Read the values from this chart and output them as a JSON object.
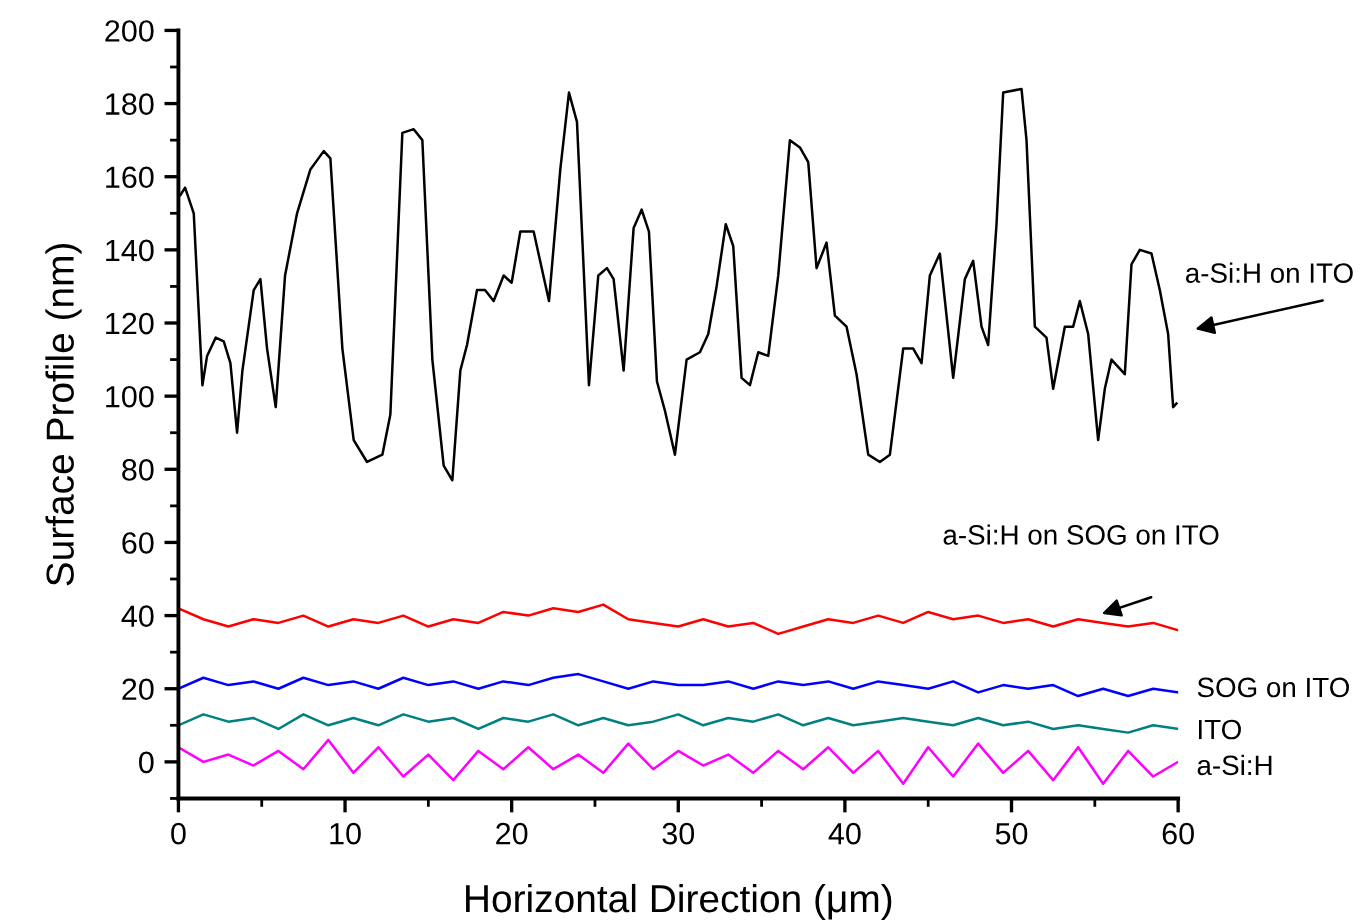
{
  "chart_data": {
    "type": "line",
    "xlabel": "Horizontal Direction (μm)",
    "ylabel": "Surface Profile (nm)",
    "xlim": [
      0,
      60
    ],
    "xticks": [
      0,
      10,
      20,
      30,
      40,
      50,
      60
    ],
    "ylim": [
      -10,
      200
    ],
    "yticks": [
      0,
      20,
      40,
      60,
      80,
      100,
      120,
      140,
      160,
      180,
      200
    ],
    "grid": false,
    "legend": false,
    "marker": "none",
    "line_style": "solid",
    "series": [
      {
        "name": "a-Si:H on ITO",
        "color": "#000000",
        "x": [
          0.12,
          0.4,
          0.92,
          1.44,
          1.72,
          2.24,
          2.72,
          3.12,
          3.52,
          3.84,
          4.52,
          4.92,
          5.32,
          5.84,
          6.4,
          7.12,
          7.92,
          8.72,
          9.12,
          9.84,
          10.52,
          11.32,
          12.24,
          12.72,
          13.44,
          14.12,
          14.64,
          15.24,
          15.92,
          16.44,
          16.92,
          17.32,
          17.92,
          18.4,
          18.92,
          19.52,
          20,
          20.52,
          21.32,
          22.24,
          22.92,
          23.44,
          23.92,
          24.64,
          25.2,
          25.72,
          26.12,
          26.72,
          27.32,
          27.8,
          28.24,
          28.72,
          29.2,
          29.8,
          30.5,
          31.3,
          31.8,
          32.3,
          32.85,
          33.3,
          33.8,
          34.3,
          34.8,
          35.4,
          36.0,
          36.7,
          37.3,
          37.8,
          38.3,
          38.9,
          39.4,
          40.1,
          40.7,
          41.4,
          42.1,
          42.7,
          43.5,
          44.1,
          44.6,
          45.1,
          45.7,
          46.5,
          47.2,
          47.7,
          48.2,
          48.6,
          49.1,
          49.5,
          50.6,
          50.9,
          51.4,
          52.1,
          52.5,
          53.2,
          53.7,
          54.1,
          54.6,
          55.2,
          55.6,
          56.0,
          56.8,
          57.2,
          57.7,
          58.4,
          58.9,
          59.4,
          59.7,
          59.9
        ],
        "values": [
          155,
          157,
          150,
          103,
          111,
          116,
          115,
          109,
          90,
          107,
          129,
          132,
          113,
          97,
          133,
          150,
          162,
          167,
          165,
          113,
          88,
          82,
          84,
          95,
          172,
          173,
          170,
          110,
          81,
          77,
          107,
          114,
          129,
          129,
          126,
          133,
          131,
          145,
          145,
          126,
          162,
          183,
          175,
          103,
          133,
          135,
          132,
          107,
          146,
          151,
          145,
          104,
          96,
          84,
          110,
          112,
          117,
          130,
          147,
          141,
          105,
          103,
          112,
          111,
          133,
          170,
          168,
          164,
          135,
          142,
          122,
          119,
          106,
          84,
          82,
          84,
          113,
          113,
          109,
          133,
          139,
          105,
          132,
          137,
          119,
          114,
          147,
          183,
          184,
          170,
          119,
          116,
          102,
          119,
          119,
          126,
          117,
          88,
          102,
          110,
          106,
          136,
          140,
          139,
          129,
          117,
          97,
          98
        ]
      },
      {
        "name": "a-Si:H on SOG on ITO",
        "color": "#ff0000",
        "values": [
          42,
          39,
          37,
          39,
          38,
          40,
          37,
          39,
          38,
          40,
          37,
          39,
          38,
          41,
          40,
          42,
          41,
          43,
          39,
          38,
          37,
          39,
          37,
          38,
          35,
          37,
          39,
          38,
          40,
          38,
          41,
          39,
          40,
          38,
          39,
          37,
          39,
          38,
          37,
          38,
          36
        ]
      },
      {
        "name": "SOG on ITO",
        "color": "#0000ff",
        "values": [
          20,
          23,
          21,
          22,
          20,
          23,
          21,
          22,
          20,
          23,
          21,
          22,
          20,
          22,
          21,
          23,
          24,
          22,
          20,
          22,
          21,
          21,
          22,
          20,
          22,
          21,
          22,
          20,
          22,
          21,
          20,
          22,
          19,
          21,
          20,
          21,
          18,
          20,
          18,
          20,
          19
        ]
      },
      {
        "name": "ITO",
        "color": "#008080",
        "values": [
          10,
          13,
          11,
          12,
          9,
          13,
          10,
          12,
          10,
          13,
          11,
          12,
          9,
          12,
          11,
          13,
          10,
          12,
          10,
          11,
          13,
          10,
          12,
          11,
          13,
          10,
          12,
          10,
          11,
          12,
          11,
          10,
          12,
          10,
          11,
          9,
          10,
          9,
          8,
          10,
          9
        ]
      },
      {
        "name": "a-Si:H",
        "color": "#ff00ff",
        "values": [
          4,
          0,
          2,
          -1,
          3,
          -2,
          6,
          -3,
          4,
          -4,
          2,
          -5,
          3,
          -2,
          4,
          -2,
          2,
          -3,
          5,
          -2,
          3,
          -1,
          2,
          -3,
          3,
          -2,
          4,
          -3,
          3,
          -6,
          4,
          -4,
          5,
          -3,
          3,
          -5,
          4,
          -6,
          3,
          -4,
          0
        ]
      }
    ],
    "x": [
      0,
      1.5,
      3,
      4.5,
      6,
      7.5,
      9,
      10.5,
      12,
      13.5,
      15,
      16.5,
      18,
      19.5,
      21,
      22.5,
      24,
      25.5,
      27,
      28.5,
      30,
      31.5,
      33,
      34.5,
      36,
      37.5,
      39,
      40.5,
      42,
      43.5,
      45,
      46.5,
      48,
      49.5,
      51,
      52.5,
      54,
      55.5,
      57,
      58.5,
      60
    ]
  }
}
